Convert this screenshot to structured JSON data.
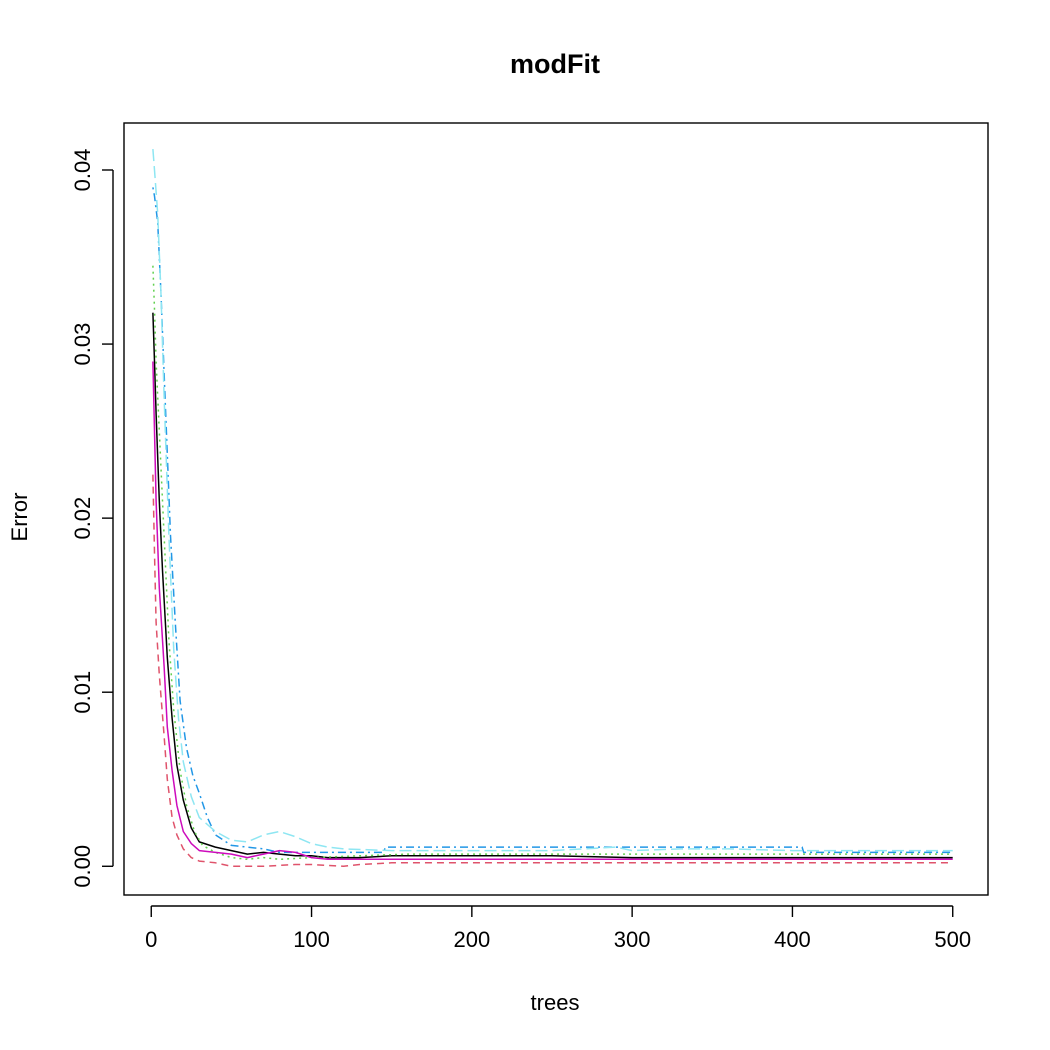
{
  "chart_data": {
    "type": "line",
    "title": "modFit",
    "xlabel": "trees",
    "ylabel": "Error",
    "xlim": [
      -17,
      522
    ],
    "ylim": [
      -0.00165,
      0.0427
    ],
    "x_ticks": [
      0,
      100,
      200,
      300,
      400,
      500
    ],
    "x_tick_labels": [
      "0",
      "100",
      "200",
      "300",
      "400",
      "500"
    ],
    "y_ticks": [
      0.0,
      0.01,
      0.02,
      0.03,
      0.04
    ],
    "y_tick_labels": [
      "0.00",
      "0.01",
      "0.02",
      "0.03",
      "0.04"
    ],
    "grid": false,
    "legend": false,
    "series": [
      {
        "color": "#000000",
        "dash": "solid",
        "points": [
          [
            1,
            0.0318
          ],
          [
            2,
            0.029
          ],
          [
            3,
            0.026
          ],
          [
            5,
            0.021
          ],
          [
            7,
            0.017
          ],
          [
            10,
            0.012
          ],
          [
            13,
            0.0085
          ],
          [
            16,
            0.0058
          ],
          [
            20,
            0.0038
          ],
          [
            25,
            0.0022
          ],
          [
            30,
            0.0014
          ],
          [
            40,
            0.0011
          ],
          [
            50,
            0.0009
          ],
          [
            60,
            0.0007
          ],
          [
            70,
            0.0008
          ],
          [
            80,
            0.0007
          ],
          [
            90,
            0.0006
          ],
          [
            100,
            0.0006
          ],
          [
            110,
            0.0005
          ],
          [
            130,
            0.0005
          ],
          [
            150,
            0.0006
          ],
          [
            200,
            0.0006
          ],
          [
            250,
            0.0006
          ],
          [
            300,
            0.0005
          ],
          [
            350,
            0.0005
          ],
          [
            400,
            0.0005
          ],
          [
            450,
            0.0005
          ],
          [
            500,
            0.0005
          ]
        ]
      },
      {
        "color": "#df536b",
        "dash": "dashed",
        "points": [
          [
            1,
            0.0225
          ],
          [
            2,
            0.018
          ],
          [
            3,
            0.014
          ],
          [
            5,
            0.011
          ],
          [
            8,
            0.0075
          ],
          [
            10,
            0.005
          ],
          [
            13,
            0.0028
          ],
          [
            16,
            0.0018
          ],
          [
            20,
            0.001
          ],
          [
            25,
            0.0005
          ],
          [
            30,
            0.0003
          ],
          [
            40,
            0.0002
          ],
          [
            50,
            0.0
          ],
          [
            70,
            0.0
          ],
          [
            90,
            0.0001
          ],
          [
            100,
            0.0001
          ],
          [
            120,
            0.0
          ],
          [
            130,
            0.0001
          ],
          [
            150,
            0.0002
          ],
          [
            200,
            0.0002
          ],
          [
            300,
            0.0002
          ],
          [
            400,
            0.0002
          ],
          [
            500,
            0.0002
          ]
        ]
      },
      {
        "color": "#61d04f",
        "dash": "dotted",
        "points": [
          [
            1,
            0.0345
          ],
          [
            2,
            0.032
          ],
          [
            3,
            0.029
          ],
          [
            5,
            0.025
          ],
          [
            8,
            0.019
          ],
          [
            11,
            0.013
          ],
          [
            14,
            0.009
          ],
          [
            18,
            0.0055
          ],
          [
            22,
            0.0035
          ],
          [
            27,
            0.002
          ],
          [
            32,
            0.0012
          ],
          [
            40,
            0.0008
          ],
          [
            50,
            0.0005
          ],
          [
            60,
            0.0004
          ],
          [
            70,
            0.0005
          ],
          [
            80,
            0.0004
          ],
          [
            100,
            0.0005
          ],
          [
            130,
            0.0006
          ],
          [
            160,
            0.0007
          ],
          [
            200,
            0.0007
          ],
          [
            300,
            0.0007
          ],
          [
            400,
            0.0007
          ],
          [
            500,
            0.0007
          ]
        ]
      },
      {
        "color": "#2297e6",
        "dash": "dotdash",
        "points": [
          [
            1,
            0.039
          ],
          [
            2,
            0.0385
          ],
          [
            4,
            0.037
          ],
          [
            6,
            0.033
          ],
          [
            9,
            0.026
          ],
          [
            12,
            0.019
          ],
          [
            15,
            0.014
          ],
          [
            18,
            0.0095
          ],
          [
            22,
            0.0068
          ],
          [
            26,
            0.0052
          ],
          [
            30,
            0.0042
          ],
          [
            35,
            0.0028
          ],
          [
            40,
            0.0018
          ],
          [
            50,
            0.0012
          ],
          [
            60,
            0.0011
          ],
          [
            70,
            0.001
          ],
          [
            80,
            0.0008
          ],
          [
            100,
            0.0008
          ],
          [
            145,
            0.0008
          ],
          [
            146,
            0.0011
          ],
          [
            200,
            0.0011
          ],
          [
            300,
            0.0011
          ],
          [
            400,
            0.0011
          ],
          [
            406,
            0.0011
          ],
          [
            407,
            0.0008
          ],
          [
            500,
            0.0008
          ]
        ]
      },
      {
        "color": "#8ee6f2",
        "dash": "longdash",
        "points": [
          [
            1,
            0.0412
          ],
          [
            2,
            0.04
          ],
          [
            4,
            0.0375
          ],
          [
            6,
            0.033
          ],
          [
            8,
            0.027
          ],
          [
            11,
            0.019
          ],
          [
            14,
            0.0125
          ],
          [
            17,
            0.0085
          ],
          [
            20,
            0.006
          ],
          [
            25,
            0.004
          ],
          [
            30,
            0.0028
          ],
          [
            40,
            0.002
          ],
          [
            50,
            0.0015
          ],
          [
            60,
            0.0014
          ],
          [
            70,
            0.0018
          ],
          [
            80,
            0.002
          ],
          [
            90,
            0.0017
          ],
          [
            100,
            0.0013
          ],
          [
            110,
            0.0011
          ],
          [
            120,
            0.001
          ],
          [
            150,
            0.0009
          ],
          [
            200,
            0.0009
          ],
          [
            250,
            0.0009
          ],
          [
            290,
            0.0011
          ],
          [
            300,
            0.0009
          ],
          [
            330,
            0.001
          ],
          [
            360,
            0.001
          ],
          [
            400,
            0.0009
          ],
          [
            450,
            0.0009
          ],
          [
            500,
            0.0009
          ]
        ]
      },
      {
        "color": "#cd0bbc",
        "dash": "solid",
        "points": [
          [
            1,
            0.029
          ],
          [
            2,
            0.025
          ],
          [
            3,
            0.021
          ],
          [
            5,
            0.016
          ],
          [
            8,
            0.0115
          ],
          [
            10,
            0.008
          ],
          [
            13,
            0.0055
          ],
          [
            16,
            0.0035
          ],
          [
            20,
            0.002
          ],
          [
            25,
            0.0013
          ],
          [
            30,
            0.0009
          ],
          [
            40,
            0.0008
          ],
          [
            50,
            0.0007
          ],
          [
            60,
            0.0005
          ],
          [
            70,
            0.0007
          ],
          [
            80,
            0.0009
          ],
          [
            90,
            0.0008
          ],
          [
            100,
            0.0005
          ],
          [
            110,
            0.0004
          ],
          [
            120,
            0.0004
          ],
          [
            150,
            0.0004
          ],
          [
            200,
            0.0004
          ],
          [
            300,
            0.0004
          ],
          [
            400,
            0.0004
          ],
          [
            500,
            0.0004
          ]
        ]
      }
    ]
  }
}
